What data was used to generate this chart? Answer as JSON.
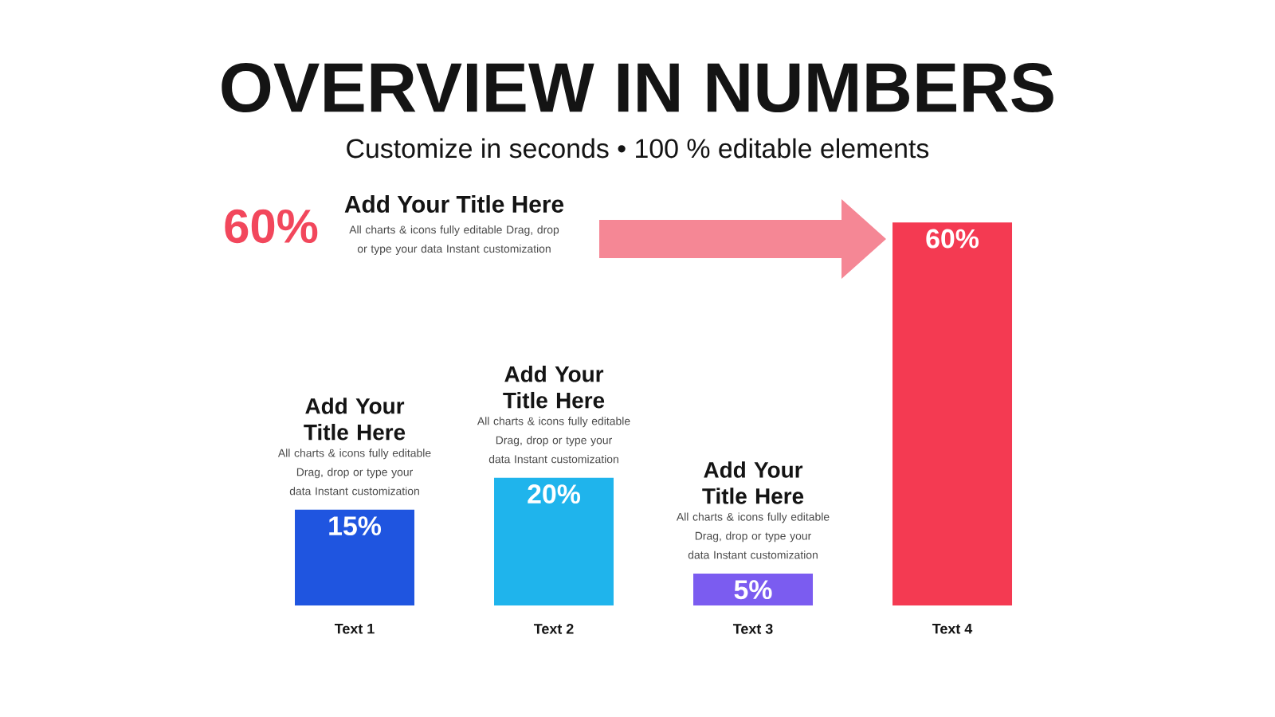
{
  "chart_data": {
    "type": "bar",
    "title": "OVERVIEW IN NUMBERS",
    "subtitle": "Customize in seconds • 100 % editable elements",
    "categories": [
      "Text 1",
      "Text 2",
      "Text 3",
      "Text 4"
    ],
    "values": [
      15,
      20,
      5,
      60
    ],
    "colors": [
      "#1f55e0",
      "#1fb4ec",
      "#7b5cf0",
      "#f43a52"
    ],
    "value_labels": [
      "15%",
      "20%",
      "5%",
      "60%"
    ],
    "annotations": [
      "60%",
      "Add Your Title Here",
      "All charts & icons fully editable Drag, drop or type your data Instant customization",
      "Add Your Title Here",
      "All charts & icons fully editable Drag, drop or type your data Instant customization",
      "Add Your Title Here",
      "All charts & icons fully editable Drag, drop or type your data Instant customization",
      "Add Your Title Here",
      "All charts & icons fully editable Drag, drop or type your data Instant customization"
    ]
  }
}
